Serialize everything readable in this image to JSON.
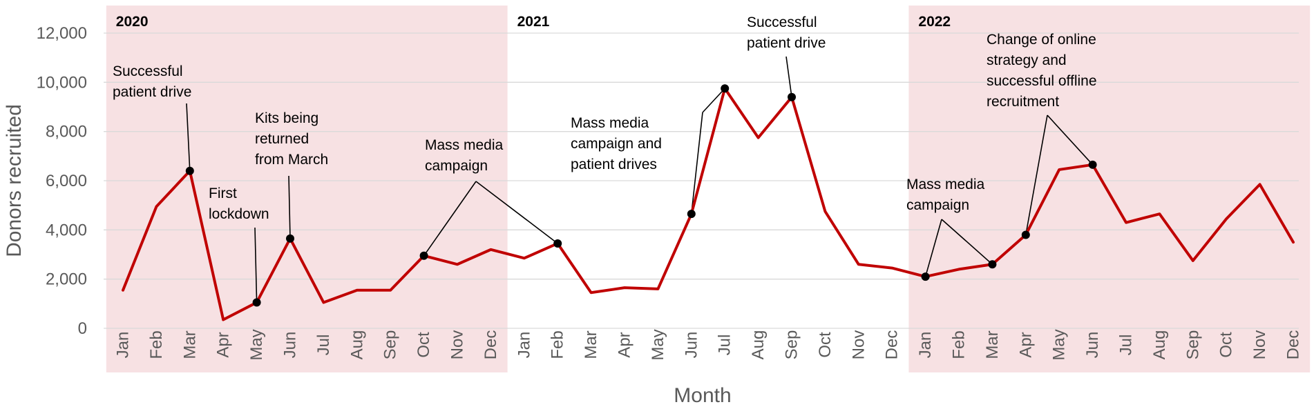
{
  "chart_data": {
    "type": "line",
    "title": "",
    "xlabel": "Month",
    "ylabel": "Donors recruited",
    "ylim": [
      0,
      12000
    ],
    "yticks": [
      0,
      2000,
      4000,
      6000,
      8000,
      10000,
      12000
    ],
    "ytick_labels": [
      "0",
      "2,000",
      "4,000",
      "6,000",
      "8,000",
      "10,000",
      "12,000"
    ],
    "grid": true,
    "legend": "none",
    "line_color": "#C00000",
    "band_color": "#F7E1E3",
    "categories": [
      "Jan",
      "Feb",
      "Mar",
      "Apr",
      "May",
      "Jun",
      "Jul",
      "Aug",
      "Sep",
      "Oct",
      "Nov",
      "Dec",
      "Jan",
      "Feb",
      "Mar",
      "Apr",
      "May",
      "Jun",
      "Jul",
      "Aug",
      "Sep",
      "Oct",
      "Nov",
      "Dec",
      "Jan",
      "Feb",
      "Mar",
      "Apr",
      "May",
      "Jun",
      "Jul",
      "Aug",
      "Sep",
      "Oct",
      "Nov",
      "Dec"
    ],
    "series": [
      {
        "values": [
          1550,
          4950,
          6400,
          350,
          1050,
          3650,
          1050,
          1550,
          1550,
          2950,
          2600,
          3200,
          2850,
          3450,
          1450,
          1650,
          1600,
          4650,
          9750,
          7750,
          9400,
          4750,
          2600,
          2450,
          2100,
          2400,
          2600,
          3800,
          6450,
          6650,
          4300,
          4650,
          2750,
          4450,
          5850,
          3500
        ]
      }
    ],
    "years": [
      {
        "label": "2020",
        "start": 0,
        "end": 11,
        "shaded": true
      },
      {
        "label": "2021",
        "start": 12,
        "end": 23,
        "shaded": false
      },
      {
        "label": "2022",
        "start": 24,
        "end": 35,
        "shaded": true
      }
    ],
    "markers": [
      2,
      4,
      5,
      9,
      13,
      17,
      18,
      20,
      24,
      26,
      27,
      29
    ],
    "annotations": [
      {
        "lines": [
          "Successful",
          "patient drive"
        ],
        "points": [
          2
        ]
      },
      {
        "lines": [
          "First",
          "lockdown"
        ],
        "points": [
          4
        ]
      },
      {
        "lines": [
          "Kits being",
          "returned",
          "from March"
        ],
        "points": [
          5
        ]
      },
      {
        "lines": [
          "Mass media",
          "campaign"
        ],
        "points": [
          9,
          13
        ]
      },
      {
        "lines": [
          "Mass media",
          "campaign and",
          "patient drives"
        ],
        "points": [
          17,
          18
        ]
      },
      {
        "lines": [
          "Successful",
          "patient drive"
        ],
        "points": [
          20
        ]
      },
      {
        "lines": [
          "Mass media",
          "campaign"
        ],
        "points": [
          24,
          26
        ]
      },
      {
        "lines": [
          "Change of online",
          "strategy and",
          "successful offline",
          "recruitment"
        ],
        "points": [
          27,
          29
        ]
      }
    ]
  }
}
